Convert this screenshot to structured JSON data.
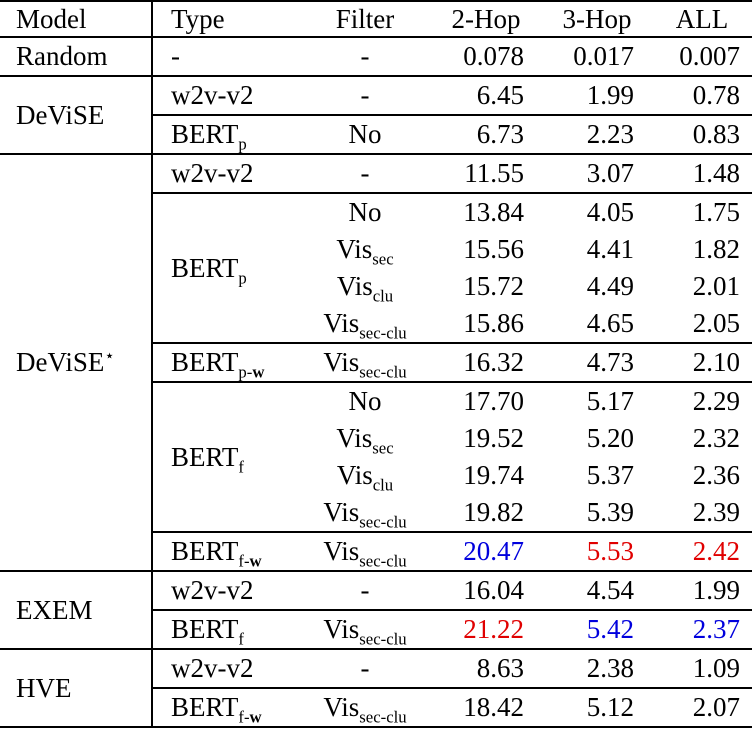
{
  "colors": {
    "red": "#e00000",
    "blue": "#0000dd",
    "text": "#000000",
    "rule": "#000000"
  },
  "header": {
    "model": "Model",
    "type": "Type",
    "filter": "Filter",
    "hop2": "2-Hop",
    "hop3": "3-Hop",
    "all": "ALL"
  },
  "groups": [
    {
      "model": {
        "base": "Random",
        "sup": ""
      },
      "types": [
        {
          "type": {
            "base": "-",
            "sub": "",
            "subBold": ""
          },
          "rows": [
            {
              "filter": {
                "base": "-",
                "sub": ""
              },
              "values": [
                {
                  "t": "0.078",
                  "c": ""
                },
                {
                  "t": "0.017",
                  "c": ""
                },
                {
                  "t": "0.007",
                  "c": ""
                }
              ]
            }
          ]
        }
      ]
    },
    {
      "model": {
        "base": "DeViSE",
        "sup": ""
      },
      "types": [
        {
          "type": {
            "base": "w2v-v2",
            "sub": "",
            "subBold": ""
          },
          "rows": [
            {
              "filter": {
                "base": "-",
                "sub": ""
              },
              "values": [
                {
                  "t": "6.45",
                  "c": ""
                },
                {
                  "t": "1.99",
                  "c": ""
                },
                {
                  "t": "0.78",
                  "c": ""
                }
              ]
            }
          ]
        },
        {
          "type": {
            "base": "BERT",
            "sub": "p",
            "subBold": ""
          },
          "rows": [
            {
              "filter": {
                "base": "No",
                "sub": ""
              },
              "values": [
                {
                  "t": "6.73",
                  "c": ""
                },
                {
                  "t": "2.23",
                  "c": ""
                },
                {
                  "t": "0.83",
                  "c": ""
                }
              ]
            }
          ]
        }
      ]
    },
    {
      "model": {
        "base": "DeViSE",
        "sup": "⋆"
      },
      "types": [
        {
          "type": {
            "base": "w2v-v2",
            "sub": "",
            "subBold": ""
          },
          "rows": [
            {
              "filter": {
                "base": "-",
                "sub": ""
              },
              "values": [
                {
                  "t": "11.55",
                  "c": ""
                },
                {
                  "t": "3.07",
                  "c": ""
                },
                {
                  "t": "1.48",
                  "c": ""
                }
              ]
            }
          ]
        },
        {
          "type": {
            "base": "BERT",
            "sub": "p",
            "subBold": ""
          },
          "rows": [
            {
              "filter": {
                "base": "No",
                "sub": ""
              },
              "values": [
                {
                  "t": "13.84",
                  "c": ""
                },
                {
                  "t": "4.05",
                  "c": ""
                },
                {
                  "t": "1.75",
                  "c": ""
                }
              ]
            },
            {
              "filter": {
                "base": "Vis",
                "sub": "sec"
              },
              "values": [
                {
                  "t": "15.56",
                  "c": ""
                },
                {
                  "t": "4.41",
                  "c": ""
                },
                {
                  "t": "1.82",
                  "c": ""
                }
              ]
            },
            {
              "filter": {
                "base": "Vis",
                "sub": "clu"
              },
              "values": [
                {
                  "t": "15.72",
                  "c": ""
                },
                {
                  "t": "4.49",
                  "c": ""
                },
                {
                  "t": "2.01",
                  "c": ""
                }
              ]
            },
            {
              "filter": {
                "base": "Vis",
                "sub": "sec-clu"
              },
              "values": [
                {
                  "t": "15.86",
                  "c": ""
                },
                {
                  "t": "4.65",
                  "c": ""
                },
                {
                  "t": "2.05",
                  "c": ""
                }
              ]
            }
          ]
        },
        {
          "type": {
            "base": "BERT",
            "sub": "p-",
            "subBold": "w"
          },
          "rows": [
            {
              "filter": {
                "base": "Vis",
                "sub": "sec-clu"
              },
              "values": [
                {
                  "t": "16.32",
                  "c": ""
                },
                {
                  "t": "4.73",
                  "c": ""
                },
                {
                  "t": "2.10",
                  "c": ""
                }
              ]
            }
          ]
        },
        {
          "type": {
            "base": "BERT",
            "sub": "f",
            "subBold": ""
          },
          "rows": [
            {
              "filter": {
                "base": "No",
                "sub": ""
              },
              "values": [
                {
                  "t": "17.70",
                  "c": ""
                },
                {
                  "t": "5.17",
                  "c": ""
                },
                {
                  "t": "2.29",
                  "c": ""
                }
              ]
            },
            {
              "filter": {
                "base": "Vis",
                "sub": "sec"
              },
              "values": [
                {
                  "t": "19.52",
                  "c": ""
                },
                {
                  "t": "5.20",
                  "c": ""
                },
                {
                  "t": "2.32",
                  "c": ""
                }
              ]
            },
            {
              "filter": {
                "base": "Vis",
                "sub": "clu"
              },
              "values": [
                {
                  "t": "19.74",
                  "c": ""
                },
                {
                  "t": "5.37",
                  "c": ""
                },
                {
                  "t": "2.36",
                  "c": ""
                }
              ]
            },
            {
              "filter": {
                "base": "Vis",
                "sub": "sec-clu"
              },
              "values": [
                {
                  "t": "19.82",
                  "c": ""
                },
                {
                  "t": "5.39",
                  "c": ""
                },
                {
                  "t": "2.39",
                  "c": ""
                }
              ]
            }
          ]
        },
        {
          "type": {
            "base": "BERT",
            "sub": "f-",
            "subBold": "w"
          },
          "rows": [
            {
              "filter": {
                "base": "Vis",
                "sub": "sec-clu"
              },
              "values": [
                {
                  "t": "20.47",
                  "c": "blue"
                },
                {
                  "t": "5.53",
                  "c": "red"
                },
                {
                  "t": "2.42",
                  "c": "red"
                }
              ]
            }
          ]
        }
      ]
    },
    {
      "model": {
        "base": "EXEM",
        "sup": ""
      },
      "types": [
        {
          "type": {
            "base": "w2v-v2",
            "sub": "",
            "subBold": ""
          },
          "rows": [
            {
              "filter": {
                "base": "-",
                "sub": ""
              },
              "values": [
                {
                  "t": "16.04",
                  "c": ""
                },
                {
                  "t": "4.54",
                  "c": ""
                },
                {
                  "t": "1.99",
                  "c": ""
                }
              ]
            }
          ]
        },
        {
          "type": {
            "base": "BERT",
            "sub": "f",
            "subBold": ""
          },
          "rows": [
            {
              "filter": {
                "base": "Vis",
                "sub": "sec-clu"
              },
              "values": [
                {
                  "t": "21.22",
                  "c": "red"
                },
                {
                  "t": "5.42",
                  "c": "blue"
                },
                {
                  "t": "2.37",
                  "c": "blue"
                }
              ]
            }
          ]
        }
      ]
    },
    {
      "model": {
        "base": "HVE",
        "sup": ""
      },
      "types": [
        {
          "type": {
            "base": "w2v-v2",
            "sub": "",
            "subBold": ""
          },
          "rows": [
            {
              "filter": {
                "base": "-",
                "sub": ""
              },
              "values": [
                {
                  "t": "8.63",
                  "c": ""
                },
                {
                  "t": "2.38",
                  "c": ""
                },
                {
                  "t": "1.09",
                  "c": ""
                }
              ]
            }
          ]
        },
        {
          "type": {
            "base": "BERT",
            "sub": "f-",
            "subBold": "w"
          },
          "rows": [
            {
              "filter": {
                "base": "Vis",
                "sub": "sec-clu"
              },
              "values": [
                {
                  "t": "18.42",
                  "c": ""
                },
                {
                  "t": "5.12",
                  "c": ""
                },
                {
                  "t": "2.07",
                  "c": ""
                }
              ]
            }
          ]
        }
      ]
    }
  ]
}
